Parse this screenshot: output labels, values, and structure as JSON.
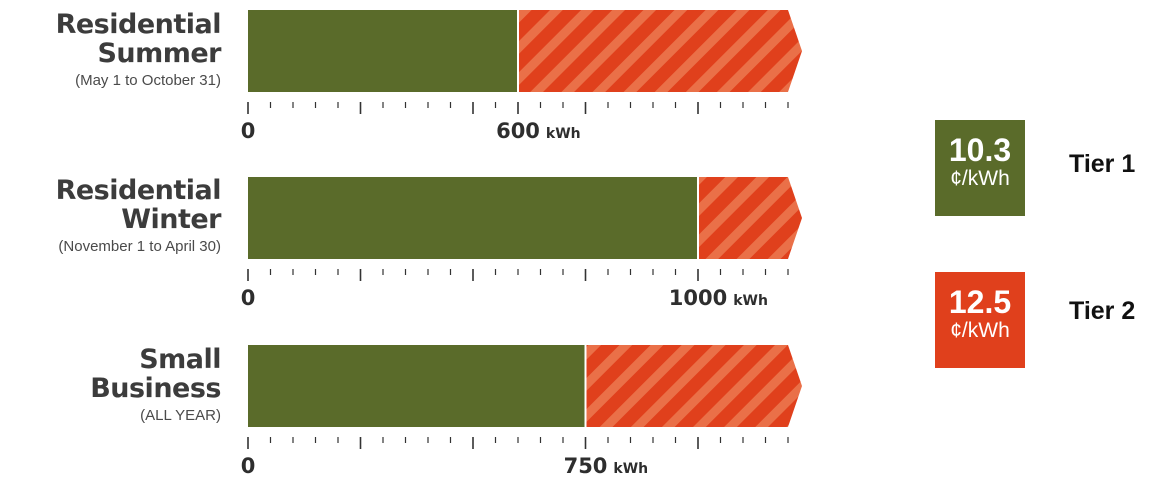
{
  "chart_data": {
    "type": "bar",
    "rows": [
      {
        "title_line1": "Residential",
        "title_line2": "Summer",
        "subtitle": "(May 1 to October 31)",
        "tier1_limit": 600,
        "axis_label": "600",
        "axis_unit": "kWh"
      },
      {
        "title_line1": "Residential",
        "title_line2": "Winter",
        "subtitle": "(November 1 to April 30)",
        "tier1_limit": 1000,
        "axis_label": "1000",
        "axis_unit": "kWh"
      },
      {
        "title_line1": "Small",
        "title_line2": "Business",
        "subtitle": "(ALL YEAR)",
        "tier1_limit": 750,
        "axis_label": "750",
        "axis_unit": "kWh"
      }
    ],
    "axis_min_label": "0",
    "xlim": [
      0,
      1200
    ],
    "tick_step": 50,
    "major_tick_step": 250,
    "legend": [
      {
        "rate": "10.3",
        "unit": "¢/kWh",
        "label": "Tier 1",
        "color": "#5a6b2a"
      },
      {
        "rate": "12.5",
        "unit": "¢/kWh",
        "label": "Tier 2",
        "color": "#e0401c"
      }
    ],
    "colors": {
      "tier1": "#5a6b2a",
      "tier2": "#e0401c",
      "stripe": "#ea7048",
      "axis": "#333333",
      "text": "#3c3c3c"
    }
  }
}
